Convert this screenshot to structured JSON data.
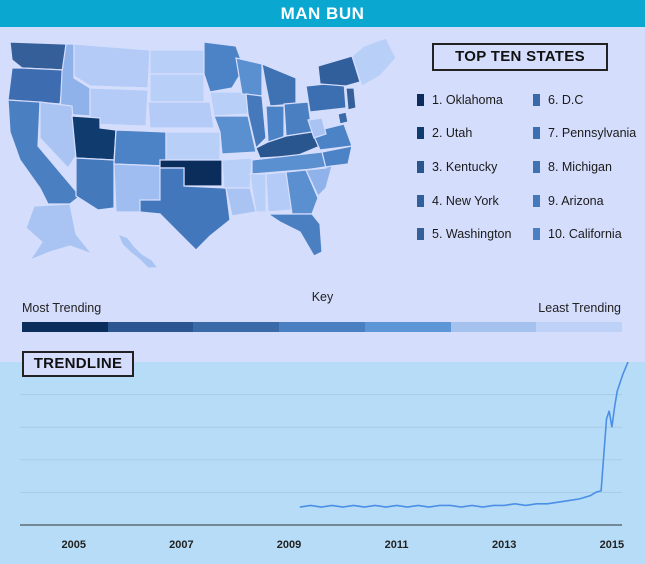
{
  "header": {
    "title": "MAN BUN"
  },
  "top_ten": {
    "title": "TOP TEN STATES",
    "items": [
      {
        "label": "1. Oklahoma",
        "color": "#0b2d5c"
      },
      {
        "label": "2. Utah",
        "color": "#0f3b6e"
      },
      {
        "label": "3. Kentucky",
        "color": "#2a568f"
      },
      {
        "label": "4. New York",
        "color": "#305f9b"
      },
      {
        "label": "5. Washington",
        "color": "#355f98"
      },
      {
        "label": "6. D.C",
        "color": "#3969a7"
      },
      {
        "label": "7. Pennsylvania",
        "color": "#3c6fb1"
      },
      {
        "label": "8. Michigan",
        "color": "#3f72b3"
      },
      {
        "label": "9. Arizona",
        "color": "#4479bb"
      },
      {
        "label": "10. California",
        "color": "#4a80c1"
      }
    ]
  },
  "key": {
    "label": "Key",
    "most": "Most Trending",
    "least": "Least Trending",
    "colors": [
      "#0b2d5c",
      "#2b5692",
      "#3a6aa8",
      "#4a7fc1",
      "#5d96d6",
      "#a5c1ee",
      "#bed2f8"
    ]
  },
  "trendline": {
    "title": "TRENDLINE"
  },
  "colors": {
    "header": "#0aa7d0",
    "top_background": "#d5ddfd",
    "chart_background": "#b7dcf7",
    "line": "#4b8fe6"
  },
  "chart_data": {
    "type": "line",
    "title": "",
    "xlabel": "",
    "ylabel": "",
    "xlim": [
      2004,
      2015.3
    ],
    "ylim": [
      0,
      100
    ],
    "x_ticks": [
      "2005",
      "2007",
      "2009",
      "2011",
      "2013",
      "2015"
    ],
    "grid": true,
    "series": [
      {
        "x": [
          2009.2,
          2009.4,
          2009.6,
          2009.8,
          2010.0,
          2010.2,
          2010.4,
          2010.6,
          2010.8,
          2011.0,
          2011.2,
          2011.4,
          2011.6,
          2011.8,
          2012.0,
          2012.2,
          2012.4,
          2012.6,
          2012.8,
          2013.0,
          2013.2,
          2013.4,
          2013.6,
          2013.8,
          2014.0,
          2014.2,
          2014.4,
          2014.6,
          2014.7,
          2014.8,
          2014.9,
          2014.95,
          2015.0,
          2015.05,
          2015.1,
          2015.2,
          2015.3
        ],
        "y": [
          11,
          12,
          11,
          12,
          11,
          12,
          11,
          12,
          11,
          12,
          11,
          12,
          11,
          12,
          12,
          11,
          12,
          11,
          12,
          12,
          13,
          12,
          13,
          13,
          14,
          15,
          16,
          18,
          20,
          21,
          65,
          70,
          60,
          72,
          82,
          92,
          100
        ]
      }
    ]
  }
}
